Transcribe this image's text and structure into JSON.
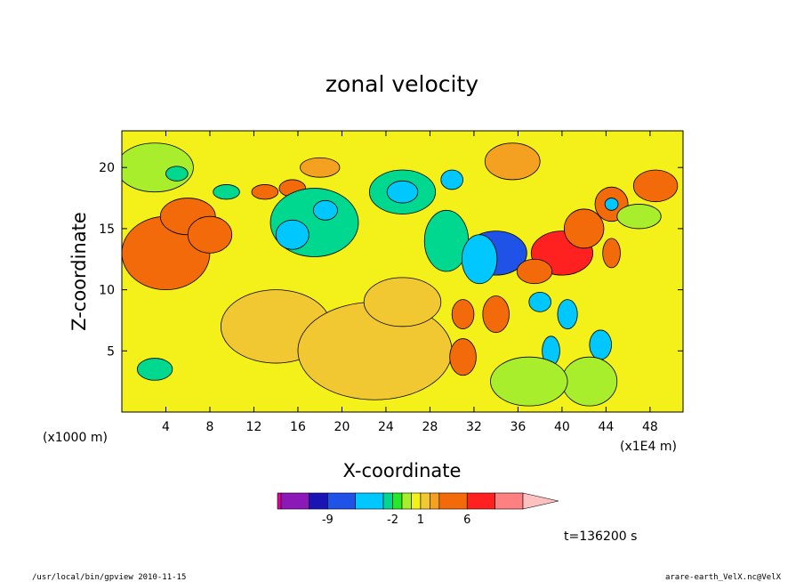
{
  "chart_data": {
    "type": "heatmap",
    "subtype": "filled-contour",
    "title": "zonal velocity",
    "xlabel": "X-coordinate",
    "ylabel": "Z-coordinate",
    "x_unit_left": "(x1000 m)",
    "x_unit_right": "(x1E4 m)",
    "xlim": [
      0,
      51
    ],
    "ylim": [
      0,
      23
    ],
    "xticks": [
      4,
      8,
      12,
      16,
      20,
      24,
      28,
      32,
      36,
      40,
      44,
      48
    ],
    "yticks": [
      5,
      10,
      15,
      20
    ],
    "colorbar": {
      "levels": [
        -14,
        -11,
        -9,
        -6,
        -3,
        -2,
        -1,
        0,
        1,
        2,
        3,
        6,
        9,
        12
      ],
      "colors": [
        "#e0009e",
        "#8c18b8",
        "#1a14b4",
        "#1f52e6",
        "#00c8ff",
        "#00d890",
        "#28e628",
        "#a8ee2c",
        "#f4f01a",
        "#f2c832",
        "#f4a020",
        "#f26a0a",
        "#ff2020",
        "#ff8080",
        "#ffc0c0"
      ],
      "tick_labels": [
        "-9",
        "-2",
        "1",
        "6"
      ],
      "tick_levels": [
        -9,
        -2,
        1,
        6
      ]
    },
    "time_label": "t=136200 s",
    "blobs": [
      {
        "x": 4,
        "z": 13,
        "rx": 4,
        "rz": 3,
        "v": 3.5
      },
      {
        "x": 6,
        "z": 16,
        "rx": 2.5,
        "rz": 1.5,
        "v": 4
      },
      {
        "x": 8,
        "z": 14.5,
        "rx": 2,
        "rz": 1.5,
        "v": 4.5
      },
      {
        "x": 3,
        "z": 20,
        "rx": 3.5,
        "rz": 2,
        "v": -0.9
      },
      {
        "x": 5,
        "z": 19.5,
        "rx": 1,
        "rz": 0.6,
        "v": -2.4
      },
      {
        "x": 9.5,
        "z": 18,
        "rx": 1.2,
        "rz": 0.6,
        "v": -2.4
      },
      {
        "x": 13,
        "z": 18,
        "rx": 1.2,
        "rz": 0.6,
        "v": 3.3
      },
      {
        "x": 15.5,
        "z": 18.3,
        "rx": 1.2,
        "rz": 0.7,
        "v": 3.3
      },
      {
        "x": 18,
        "z": 20,
        "rx": 1.8,
        "rz": 0.8,
        "v": 2.5
      },
      {
        "x": 17.5,
        "z": 15.5,
        "rx": 4,
        "rz": 2.8,
        "v": -2.4
      },
      {
        "x": 15.5,
        "z": 14.5,
        "rx": 1.5,
        "rz": 1.2,
        "v": -5
      },
      {
        "x": 18.5,
        "z": 16.5,
        "rx": 1.1,
        "rz": 0.8,
        "v": -5
      },
      {
        "x": 14,
        "z": 7,
        "rx": 5,
        "rz": 3,
        "v": 1.7
      },
      {
        "x": 23,
        "z": 5,
        "rx": 7,
        "rz": 4,
        "v": 1.7
      },
      {
        "x": 25.5,
        "z": 9,
        "rx": 3.5,
        "rz": 2,
        "v": 1.7
      },
      {
        "x": 3,
        "z": 3.5,
        "rx": 1.6,
        "rz": 0.9,
        "v": -2.4
      },
      {
        "x": 25.5,
        "z": 18,
        "rx": 3,
        "rz": 1.8,
        "v": -2.4
      },
      {
        "x": 25.5,
        "z": 18,
        "rx": 1.4,
        "rz": 0.9,
        "v": -5
      },
      {
        "x": 30,
        "z": 19,
        "rx": 1,
        "rz": 0.8,
        "v": -5
      },
      {
        "x": 29.5,
        "z": 14,
        "rx": 2,
        "rz": 2.5,
        "v": -2.4
      },
      {
        "x": 34,
        "z": 13,
        "rx": 2.8,
        "rz": 1.8,
        "v": -6.2
      },
      {
        "x": 32.5,
        "z": 12.5,
        "rx": 1.6,
        "rz": 2,
        "v": -5
      },
      {
        "x": 40,
        "z": 13,
        "rx": 2.8,
        "rz": 1.8,
        "v": 7.5
      },
      {
        "x": 42,
        "z": 15,
        "rx": 1.8,
        "rz": 1.6,
        "v": 4.5
      },
      {
        "x": 34,
        "z": 8,
        "rx": 1.2,
        "rz": 1.5,
        "v": 4
      },
      {
        "x": 39,
        "z": 5,
        "rx": 0.8,
        "rz": 1.2,
        "v": -5
      },
      {
        "x": 40.5,
        "z": 8,
        "rx": 0.9,
        "rz": 1.2,
        "v": -6
      },
      {
        "x": 38,
        "z": 9,
        "rx": 1,
        "rz": 0.8,
        "v": -5
      },
      {
        "x": 37.5,
        "z": 11.5,
        "rx": 1.6,
        "rz": 1,
        "v": 4
      },
      {
        "x": 44.5,
        "z": 13,
        "rx": 0.8,
        "rz": 1.2,
        "v": 4
      },
      {
        "x": 44.5,
        "z": 17,
        "rx": 1.5,
        "rz": 1.4,
        "v": 3.5
      },
      {
        "x": 44.5,
        "z": 17,
        "rx": 0.6,
        "rz": 0.5,
        "v": -5
      },
      {
        "x": 48.5,
        "z": 18.5,
        "rx": 2,
        "rz": 1.3,
        "v": 4
      },
      {
        "x": 47,
        "z": 16,
        "rx": 2,
        "rz": 1,
        "v": -0.9
      },
      {
        "x": 43.5,
        "z": 5.5,
        "rx": 1,
        "rz": 1.2,
        "v": -3.5
      },
      {
        "x": 42.5,
        "z": 2.5,
        "rx": 2.5,
        "rz": 2,
        "v": -0.9
      },
      {
        "x": 37,
        "z": 2.5,
        "rx": 3.5,
        "rz": 2,
        "v": -0.9
      },
      {
        "x": 31,
        "z": 4.5,
        "rx": 1.2,
        "rz": 1.5,
        "v": 3.3
      },
      {
        "x": 31,
        "z": 8,
        "rx": 1,
        "rz": 1.2,
        "v": 3.3
      },
      {
        "x": 35.5,
        "z": 20.5,
        "rx": 2.5,
        "rz": 1.5,
        "v": 2
      }
    ]
  },
  "footer": {
    "left": "/usr/local/bin/gpview  2010-11-15",
    "right": "arare-earth_VelX.nc@VelX"
  }
}
